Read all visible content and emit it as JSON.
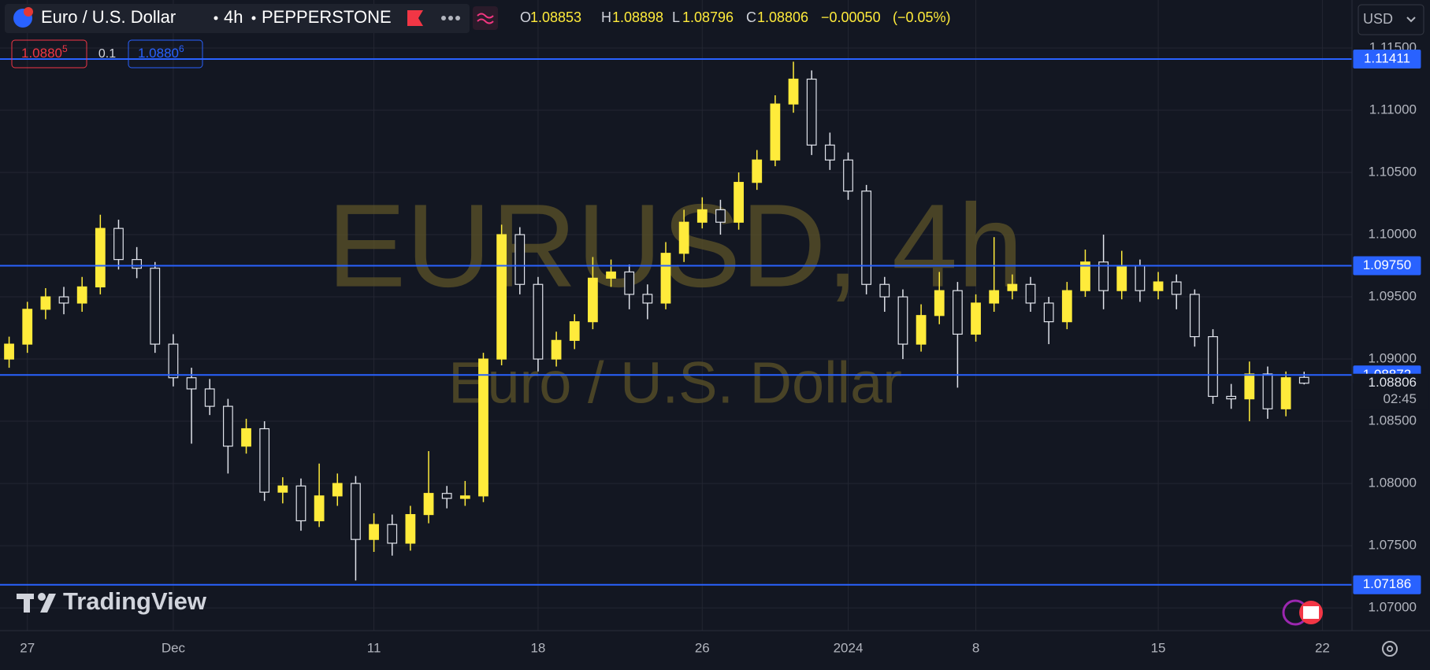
{
  "chart_data": {
    "type": "candlestick",
    "symbol": "Euro / U.S. Dollar",
    "interval": "4h",
    "exchange": "PEPPERSTONE",
    "watermark": "EURUSD, 4h",
    "watermark_subtitle": "Euro / U.S. Dollar",
    "ohlc_legend": {
      "labels": [
        "O",
        "H",
        "L",
        "C"
      ],
      "values": [
        1.08853,
        1.08898,
        1.08796,
        1.08806
      ],
      "change": -0.0005,
      "change_label": "−0.00050",
      "change_pct": -0.05,
      "change_pct_label": "(−0.05%)"
    },
    "bid": {
      "value": 1.08805,
      "main": "1.0880",
      "pip": "5"
    },
    "spread": 0.1,
    "ask": {
      "value": 1.08806,
      "main": "1.0880",
      "pip": "6"
    },
    "currency": "USD",
    "logo": "TradingView",
    "up_color": "#ffeb3b",
    "down_color": "#e0e3eb",
    "level_color": "#2962ff",
    "grid": true,
    "levels": [
      1.11411,
      {
        "value": 1.0975,
        "label": "1.09750"
      },
      1.08872,
      1.07186
    ],
    "last_price": 1.08806,
    "countdown": "02:45",
    "ylim": [
      1.06817,
      1.11886
    ],
    "yticks": [
      {
        "value": 1.07,
        "label": "1.07000"
      },
      {
        "value": 1.075,
        "label": "1.07500"
      },
      {
        "value": 1.08,
        "label": "1.08000"
      },
      {
        "value": 1.085,
        "label": "1.08500"
      },
      {
        "value": 1.09,
        "label": "1.09000"
      },
      {
        "value": 1.095,
        "label": "1.09500"
      },
      {
        "value": 1.1,
        "label": "1.10000"
      },
      {
        "value": 1.105,
        "label": "1.10500"
      },
      {
        "value": 1.11,
        "label": "1.11000"
      },
      {
        "value": 1.115,
        "label": "1.11500"
      }
    ],
    "categories": [
      null,
      "27",
      null,
      null,
      null,
      null,
      null,
      null,
      null,
      "Dec",
      null,
      null,
      null,
      null,
      null,
      null,
      null,
      null,
      null,
      null,
      "11",
      null,
      null,
      null,
      null,
      null,
      null,
      null,
      null,
      "18",
      null,
      null,
      null,
      null,
      null,
      null,
      null,
      null,
      "26",
      null,
      null,
      null,
      null,
      null,
      null,
      null,
      "2024",
      null,
      null,
      null,
      null,
      null,
      null,
      "8",
      null,
      null,
      null,
      null,
      null,
      null,
      null,
      null,
      null,
      "15",
      null,
      null,
      null,
      null,
      null,
      null,
      null,
      null,
      "22"
    ],
    "open": [
      1.09,
      1.0912,
      1.094,
      1.095,
      1.0945,
      1.0958,
      1.1005,
      1.098,
      1.0973,
      1.0912,
      1.0885,
      1.0876,
      1.0862,
      1.083,
      1.0844,
      1.0793,
      1.0798,
      1.077,
      1.079,
      1.08,
      1.0755,
      1.0767,
      1.0752,
      1.0775,
      1.0792,
      1.0788,
      1.079,
      1.09,
      1.1,
      1.096,
      1.09,
      1.0915,
      1.093,
      1.0965,
      1.097,
      1.0952,
      1.0945,
      1.0985,
      1.101,
      1.102,
      1.101,
      1.1042,
      1.106,
      1.1105,
      1.1125,
      1.1072,
      1.106,
      1.1035,
      1.096,
      1.095,
      1.0912,
      1.0935,
      1.0955,
      1.092,
      1.0945,
      1.0955,
      1.096,
      1.0945,
      1.093,
      1.0955,
      1.0978,
      1.0955,
      1.0975,
      1.0955,
      1.0962,
      1.0952,
      1.0918,
      1.087,
      1.0868,
      1.0888,
      1.086,
      1.08853,
      null
    ],
    "high": [
      1.0918,
      1.0946,
      1.0957,
      1.0958,
      1.0966,
      1.1016,
      1.1012,
      1.099,
      1.0978,
      1.092,
      1.0893,
      1.0884,
      1.0868,
      1.0852,
      1.085,
      1.0805,
      1.0804,
      1.0816,
      1.0808,
      1.0806,
      1.0776,
      1.0775,
      1.0782,
      1.0826,
      1.0798,
      1.0802,
      1.0905,
      1.1008,
      1.1006,
      1.0966,
      1.0922,
      1.0936,
      1.0982,
      1.098,
      1.0976,
      1.096,
      1.0994,
      1.102,
      1.103,
      1.1028,
      1.105,
      1.1068,
      1.1112,
      1.1139,
      1.1132,
      1.1082,
      1.1066,
      1.104,
      1.0966,
      1.0956,
      1.0944,
      1.097,
      1.0962,
      1.0952,
      1.0998,
      1.0968,
      1.0966,
      1.095,
      1.0962,
      1.0988,
      1.1,
      1.0987,
      1.098,
      1.097,
      1.0968,
      1.0956,
      1.0924,
      1.088,
      1.0898,
      1.0894,
      1.089,
      1.08898,
      null
    ],
    "low": [
      1.0893,
      1.0905,
      1.0932,
      1.0936,
      1.0938,
      1.0952,
      1.0972,
      1.0965,
      1.0905,
      1.0878,
      1.0832,
      1.0855,
      1.0808,
      1.0824,
      1.0786,
      1.0784,
      1.0762,
      1.0765,
      1.0782,
      1.0722,
      1.0745,
      1.0742,
      1.0746,
      1.0768,
      1.078,
      1.0782,
      1.0785,
      1.0895,
      1.0952,
      1.089,
      1.0894,
      1.0908,
      1.0924,
      1.0958,
      1.094,
      1.0932,
      1.094,
      1.0978,
      1.1005,
      1.1,
      1.1004,
      1.1036,
      1.1055,
      1.1098,
      1.1064,
      1.1052,
      1.1028,
      1.0952,
      1.0938,
      1.09,
      1.0906,
      1.0928,
      1.0877,
      1.0914,
      1.0938,
      1.0948,
      1.0938,
      1.0912,
      1.0924,
      1.095,
      1.094,
      1.0948,
      1.0946,
      1.0948,
      1.094,
      1.091,
      1.0864,
      1.086,
      1.085,
      1.0852,
      1.0854,
      1.08796,
      null
    ],
    "close": [
      1.0912,
      1.094,
      1.095,
      1.0945,
      1.0958,
      1.1005,
      1.098,
      1.0973,
      1.0912,
      1.0885,
      1.0876,
      1.0862,
      1.083,
      1.0844,
      1.0793,
      1.0798,
      1.077,
      1.079,
      1.08,
      1.0755,
      1.0767,
      1.0752,
      1.0775,
      1.0792,
      1.0788,
      1.079,
      1.09,
      1.1,
      1.096,
      1.09,
      1.0915,
      1.093,
      1.0965,
      1.097,
      1.0952,
      1.0945,
      1.0985,
      1.101,
      1.102,
      1.101,
      1.1042,
      1.106,
      1.1105,
      1.1125,
      1.1072,
      1.106,
      1.1035,
      1.096,
      1.095,
      1.0912,
      1.0935,
      1.0955,
      1.092,
      1.0945,
      1.0955,
      1.096,
      1.0945,
      1.093,
      1.0955,
      1.0978,
      1.0955,
      1.0975,
      1.0955,
      1.0962,
      1.0952,
      1.0918,
      1.087,
      1.0868,
      1.0888,
      1.086,
      1.0885,
      1.08806,
      null
    ]
  }
}
